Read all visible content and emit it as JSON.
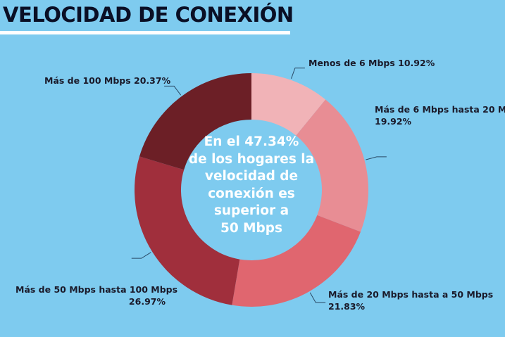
{
  "title": "VELOCIDAD DE CONEXIÓN",
  "center_text": [
    "En el 47.34%",
    "de los hogares la",
    "velocidad de",
    "conexión es",
    "superior a",
    "50 Mbps"
  ],
  "chart_data": {
    "type": "pie",
    "donut": true,
    "title": "VELOCIDAD DE CONEXIÓN",
    "categories": [
      "Menos de 6 Mbps",
      "Más de 6 Mbps hasta 20 M...",
      "Más de 20 Mbps hasta a 50 Mbps",
      "Más de 50 Mbps hasta 100 Mbps",
      "Más de 100 Mbps"
    ],
    "values": [
      10.92,
      19.92,
      21.83,
      26.97,
      20.37
    ],
    "data_labels": [
      "10.92%",
      "19.92%",
      "21.83%",
      "26.97%",
      "20.37%"
    ],
    "colors": [
      "#f1b3b7",
      "#e88d94",
      "#e0666f",
      "#a02f3c",
      "#6c1f26"
    ],
    "background": "#7ecbef"
  }
}
